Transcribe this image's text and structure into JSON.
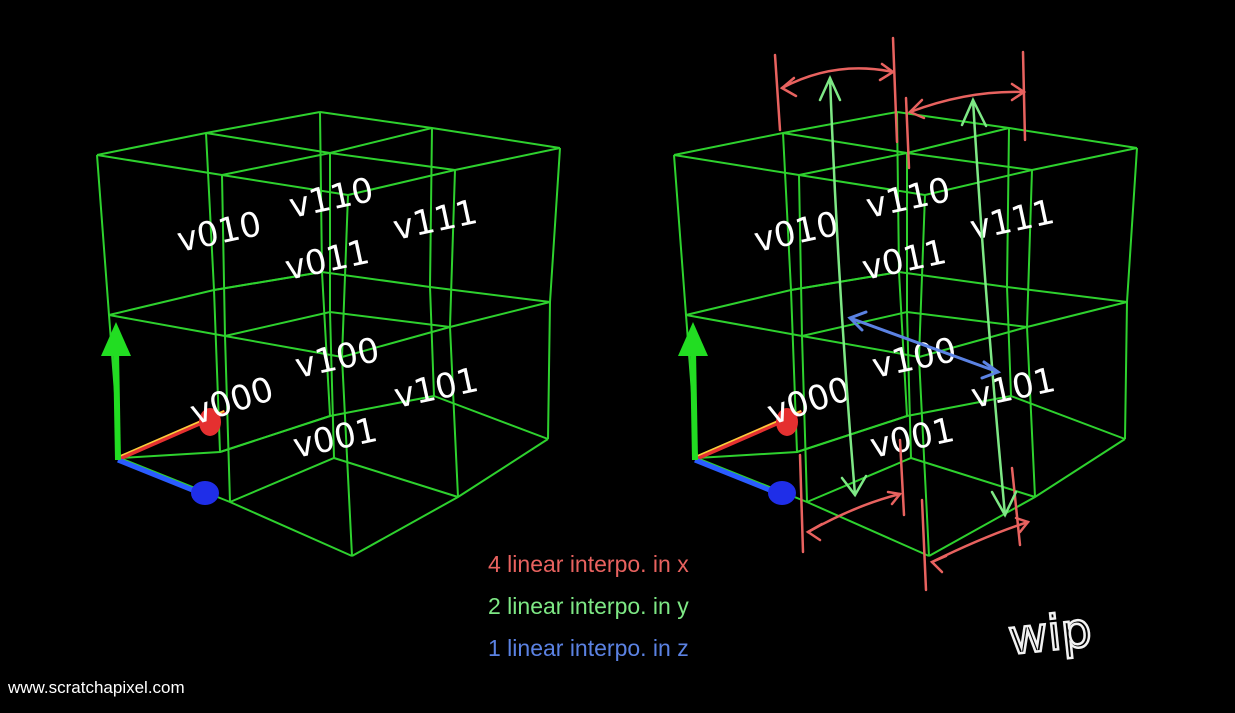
{
  "colors": {
    "background": "#000000",
    "grid": "#2ed12e",
    "label": "#ffffff",
    "interp_x": "#e8625f",
    "interp_y": "#7ee885",
    "interp_z": "#5b82e3",
    "axis_y": "#22dd22",
    "axis_x": "#e53030",
    "axis_z": "#2a5cff",
    "axis_x_highlight": "#f6d23a"
  },
  "left_cube": {
    "labels": {
      "v000": "v000",
      "v001": "v001",
      "v010": "v010",
      "v011": "v011",
      "v100": "v100",
      "v101": "v101",
      "v110": "v110",
      "v111": "v111"
    }
  },
  "right_cube": {
    "labels": {
      "v000": "v000",
      "v001": "v001",
      "v010": "v010",
      "v011": "v011",
      "v100": "v100",
      "v101": "v101",
      "v110": "v110",
      "v111": "v111"
    },
    "annotation": "wip"
  },
  "legend": {
    "x": "4 linear interpo. in x",
    "y": "2 linear interpo. in y",
    "z": "1 linear interpo. in z"
  },
  "footer": {
    "url": "www.scratchapixel.com"
  }
}
